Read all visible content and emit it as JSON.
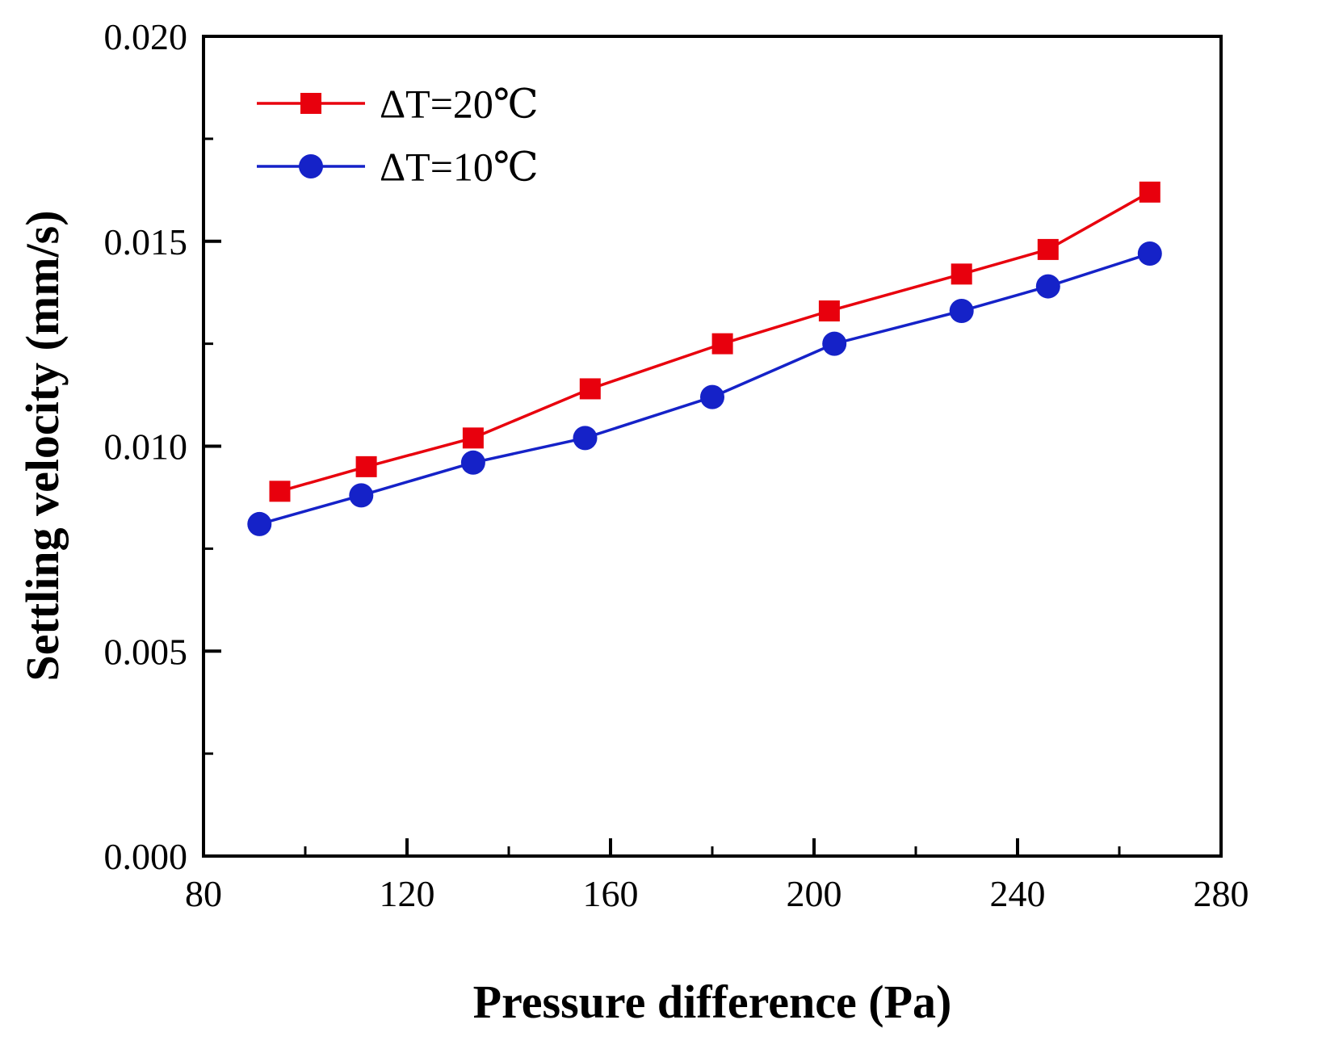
{
  "figure": {
    "background": "#ffffff",
    "frame_color": "#000000"
  },
  "chart_data": {
    "type": "line",
    "title": "",
    "xlabel": "Pressure difference (Pa)",
    "ylabel": "Settling velocity (mm/s)",
    "xlim": [
      80,
      280
    ],
    "ylim": [
      0,
      0.02
    ],
    "x_ticks": [
      80,
      120,
      160,
      200,
      240,
      280
    ],
    "x_tick_labels": [
      "80",
      "120",
      "160",
      "200",
      "240",
      "280"
    ],
    "x_minor_ticks": [
      100,
      140,
      180,
      220,
      260
    ],
    "y_ticks": [
      0,
      0.005,
      0.01,
      0.015,
      0.02
    ],
    "y_tick_labels": [
      "0.000",
      "0.005",
      "0.010",
      "0.015",
      "0.020"
    ],
    "y_minor_ticks": [
      0.0025,
      0.0075,
      0.0125,
      0.0175
    ],
    "grid": false,
    "legend_position": "top-left",
    "series": [
      {
        "name": "ΔT=20℃",
        "color": "#e8000d",
        "marker": "square",
        "x": [
          95,
          112,
          133,
          156,
          182,
          203,
          229,
          246,
          266
        ],
        "y": [
          0.0089,
          0.0095,
          0.0102,
          0.0114,
          0.0125,
          0.0133,
          0.0142,
          0.0148,
          0.0162
        ]
      },
      {
        "name": "ΔT=10℃",
        "color": "#1522c8",
        "marker": "circle",
        "x": [
          91,
          111,
          133,
          155,
          180,
          204,
          229,
          246,
          266
        ],
        "y": [
          0.0081,
          0.0088,
          0.0096,
          0.0102,
          0.0112,
          0.0125,
          0.0133,
          0.0139,
          0.0147
        ]
      }
    ]
  }
}
